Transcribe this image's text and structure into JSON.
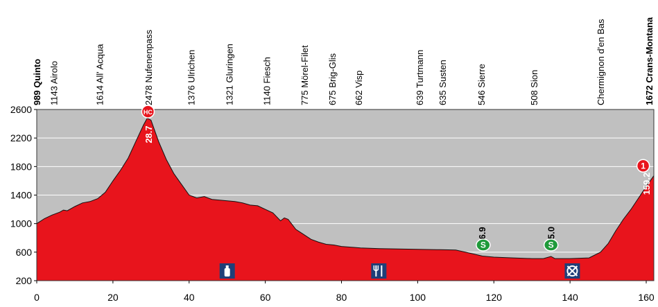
{
  "chart_data": {
    "type": "area",
    "xlabel": "",
    "ylabel": "",
    "xlim": [
      0,
      162
    ],
    "ylim": [
      200,
      2600
    ],
    "xticks": [
      0,
      20,
      40,
      60,
      80,
      100,
      120,
      140,
      160
    ],
    "yticks": [
      200,
      600,
      1000,
      1400,
      1800,
      2200,
      2600
    ],
    "grid": "horizontal",
    "colors": {
      "fill": "#e8141c",
      "plot_background": "#c0c0c0",
      "outline": "#111111",
      "sprint_badge": "#1f9a3a",
      "climb_badge": "#e8141c"
    },
    "profile": {
      "x": [
        0,
        2,
        4,
        6,
        7,
        8,
        10,
        12,
        14,
        16,
        18,
        20,
        22,
        24,
        26,
        28,
        29,
        30,
        31,
        32,
        34,
        36,
        38,
        40,
        42,
        44,
        46,
        48,
        50,
        52,
        54,
        56,
        58,
        60,
        62,
        64,
        65,
        66,
        68,
        70,
        72,
        74,
        76,
        78,
        80,
        85,
        90,
        95,
        100,
        105,
        110,
        115,
        117,
        120,
        125,
        130,
        133,
        135,
        136,
        140,
        145,
        148,
        150,
        152,
        154,
        156,
        158,
        160,
        162
      ],
      "y": [
        1000,
        1070,
        1120,
        1160,
        1190,
        1180,
        1240,
        1290,
        1310,
        1350,
        1440,
        1600,
        1750,
        1920,
        2150,
        2380,
        2478,
        2450,
        2300,
        2150,
        1900,
        1700,
        1550,
        1400,
        1360,
        1380,
        1340,
        1330,
        1320,
        1310,
        1290,
        1260,
        1250,
        1200,
        1150,
        1040,
        1080,
        1060,
        920,
        850,
        780,
        740,
        710,
        700,
        680,
        660,
        650,
        645,
        640,
        635,
        630,
        570,
        545,
        530,
        520,
        510,
        510,
        540,
        510,
        510,
        520,
        600,
        720,
        900,
        1060,
        1200,
        1360,
        1520,
        1672
      ]
    },
    "locations": [
      {
        "label": "989 Quinto",
        "km": 0,
        "bold": true
      },
      {
        "label": "1143 Airolo",
        "km": 4.5,
        "bold": false
      },
      {
        "label": "1614 All' Acqua",
        "km": 16.5,
        "bold": false
      },
      {
        "label": "2478  Nufenenpass",
        "km": 29.3,
        "bold": false
      },
      {
        "label": "1376 Ulrichen",
        "km": 40.5,
        "bold": false
      },
      {
        "label": "1321 Gluringen",
        "km": 50.5,
        "bold": false
      },
      {
        "label": "1140 Fiesch",
        "km": 60.3,
        "bold": false
      },
      {
        "label": "775 Mörel-Filet",
        "km": 70.3,
        "bold": false
      },
      {
        "label": "675 Brig-Glis",
        "km": 77.5,
        "bold": false
      },
      {
        "label": "662 Visp",
        "km": 84.5,
        "bold": false
      },
      {
        "label": "639 Turtmann",
        "km": 100.5,
        "bold": false
      },
      {
        "label": "635 Susten",
        "km": 106.5,
        "bold": false
      },
      {
        "label": "546 Sierre",
        "km": 116.7,
        "bold": false
      },
      {
        "label": "508 Sion",
        "km": 130.5,
        "bold": false
      },
      {
        "label": "Chermignon d'en Bas",
        "km": 148.0,
        "bold": false
      },
      {
        "label": "1672 Crans-Montana",
        "km": 160.7,
        "bold": true
      }
    ],
    "km_markers": [
      {
        "label": "28.7",
        "km": 29.3,
        "color": "#ffffff"
      },
      {
        "label": "116.9",
        "km": 116.9,
        "color": "#000000"
      },
      {
        "label": "135.0",
        "km": 135.0,
        "color": "#000000"
      },
      {
        "label": "159.2",
        "km": 160.0,
        "color": "#ffffff"
      }
    ],
    "badges": [
      {
        "label": "HC",
        "km": 29.2,
        "alt": 2570,
        "kind": "climb"
      },
      {
        "label": "S",
        "km": 117.2,
        "alt": 700,
        "kind": "sprint"
      },
      {
        "label": "S",
        "km": 135.0,
        "alt": 700,
        "kind": "sprint"
      },
      {
        "label": "1",
        "km": 159.2,
        "alt": 1810,
        "kind": "climb"
      }
    ],
    "services": [
      {
        "icon": "feed-bottle-icon",
        "km": 50.0
      },
      {
        "icon": "food-zone-icon",
        "km": 89.8
      },
      {
        "icon": "no-feeding-icon",
        "km": 140.6
      }
    ]
  }
}
